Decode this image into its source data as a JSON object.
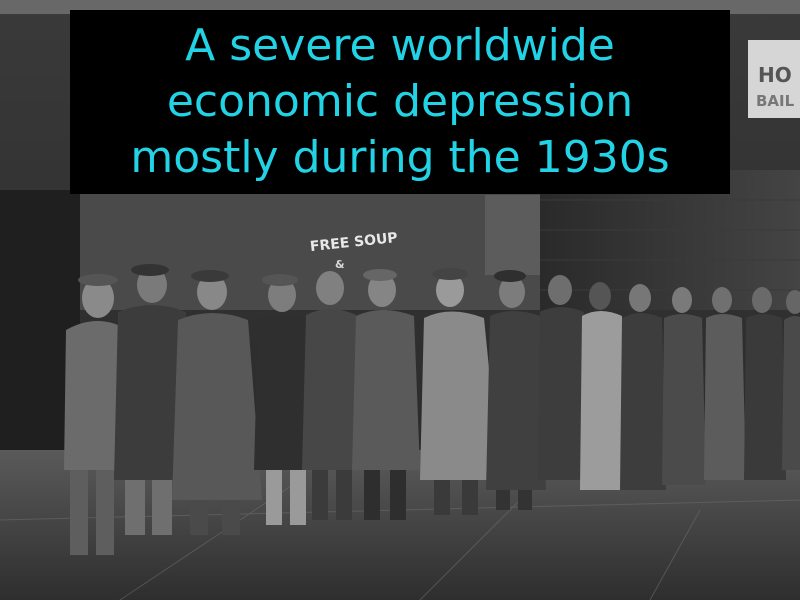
{
  "caption": {
    "text": "A severe worldwide\neconomic depression\nmostly during the 1930s",
    "color": "#22d3e6",
    "background": "#000000"
  },
  "photo": {
    "style": "black-and-white",
    "signs": {
      "soup_sign": "FREE SOUP",
      "ampersand": "&",
      "corner_sign_line1": "HO",
      "corner_sign_line2": "BAIL"
    }
  }
}
